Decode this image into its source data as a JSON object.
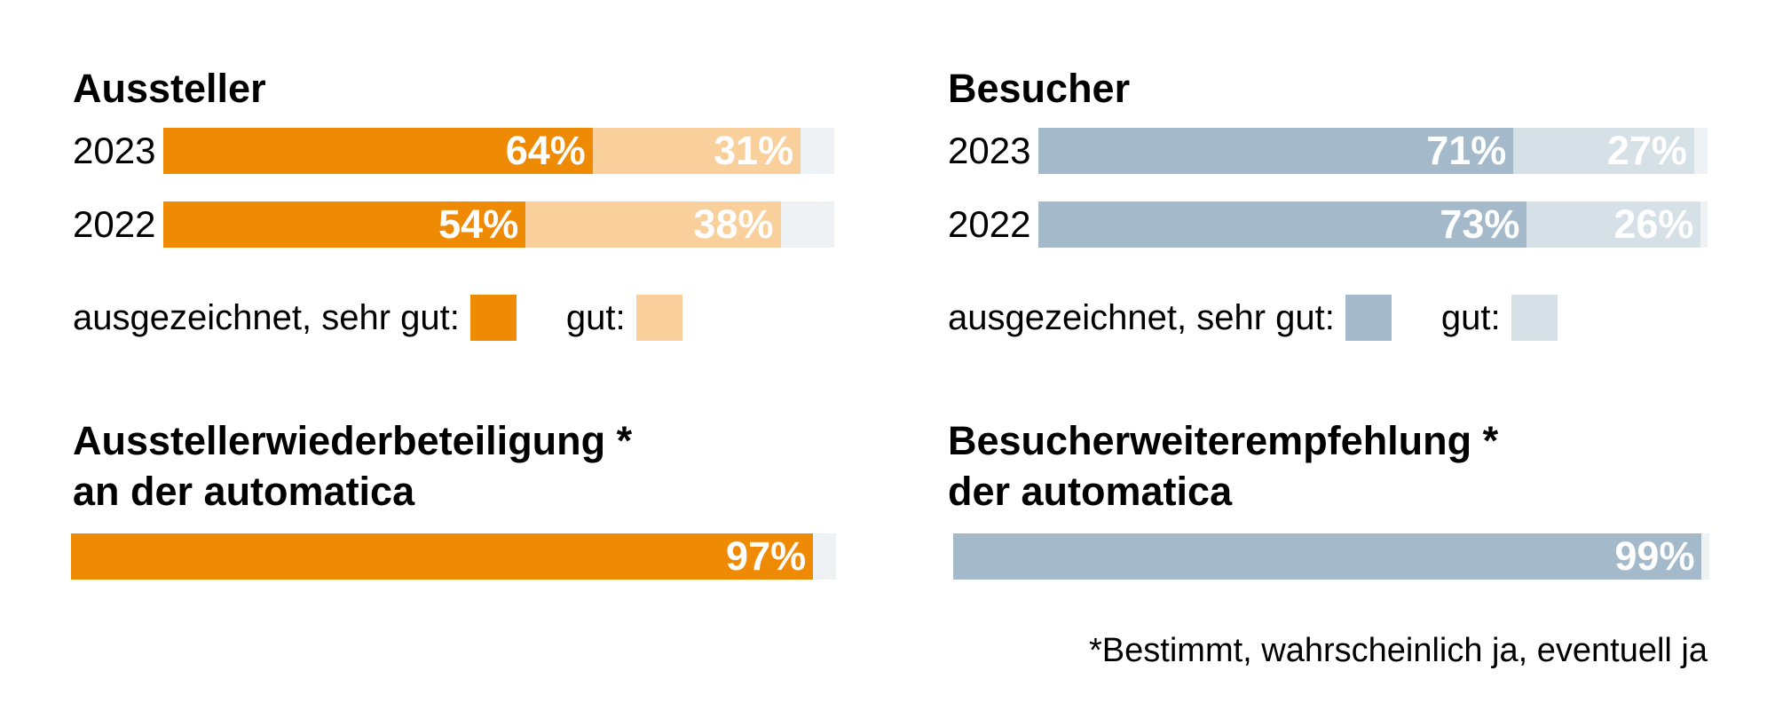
{
  "colors": {
    "aussteller_primary": "#EF8A04",
    "aussteller_secondary": "#F9D09C",
    "besucher_primary": "#A4BACA",
    "besucher_secondary": "#D6E0E7",
    "remainder": "#EEF2F5"
  },
  "legend": {
    "primary_label": "ausgezeichnet, sehr gut:",
    "secondary_label": "gut:"
  },
  "chart_data": [
    {
      "type": "bar",
      "orientation": "horizontal",
      "stacked": true,
      "title": "Aussteller",
      "categories": [
        "2023",
        "2022"
      ],
      "series": [
        {
          "name": "ausgezeichnet, sehr gut",
          "values": [
            64,
            54
          ],
          "labels": [
            "64%",
            "54%"
          ]
        },
        {
          "name": "gut",
          "values": [
            31,
            38
          ],
          "labels": [
            "31%",
            "38%"
          ]
        }
      ],
      "xlim": [
        0,
        100
      ]
    },
    {
      "type": "bar",
      "orientation": "horizontal",
      "stacked": true,
      "title": "Besucher",
      "categories": [
        "2023",
        "2022"
      ],
      "series": [
        {
          "name": "ausgezeichnet, sehr gut",
          "values": [
            71,
            73
          ],
          "labels": [
            "71%",
            "73%"
          ]
        },
        {
          "name": "gut",
          "values": [
            27,
            26
          ],
          "labels": [
            "27%",
            "26%"
          ]
        }
      ],
      "xlim": [
        0,
        100
      ]
    },
    {
      "type": "bar",
      "orientation": "horizontal",
      "title": "Ausstellerwiederbeteiligung * an der automatica",
      "title_lines": [
        "Ausstellerwiederbeteiligung *",
        "an der automatica"
      ],
      "values": [
        97
      ],
      "labels": [
        "97%"
      ],
      "xlim": [
        0,
        100
      ]
    },
    {
      "type": "bar",
      "orientation": "horizontal",
      "title": "Besucherweiterempfehlung * der automatica",
      "title_lines": [
        "Besucherweiterempfehlung *",
        "der automatica"
      ],
      "values": [
        99
      ],
      "labels": [
        "99%"
      ],
      "xlim": [
        0,
        100
      ]
    }
  ],
  "footnote": "*Bestimmt, wahrscheinlich ja, eventuell ja"
}
